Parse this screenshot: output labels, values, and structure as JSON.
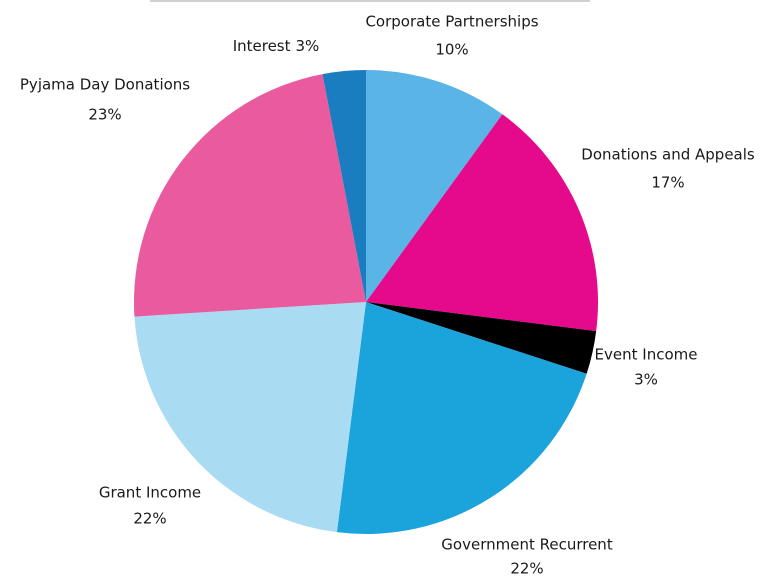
{
  "chart_data": {
    "type": "pie",
    "categories": [
      "Corporate Partnerships",
      "Donations and Appeals",
      "Event Income",
      "Government Recurrent",
      "Grant Income",
      "Pyjama Day Donations",
      "Interest"
    ],
    "values": [
      10,
      17,
      3,
      22,
      22,
      23,
      3
    ],
    "value_labels": [
      "10%",
      "17%",
      "3%",
      "22%",
      "22%",
      "23%",
      "3%"
    ],
    "colors": [
      "#5ab4e5",
      "#e5098b",
      "#000000",
      "#1ba3dc",
      "#a9dcf3",
      "#ea5a9f",
      "#1a7dc0"
    ]
  }
}
